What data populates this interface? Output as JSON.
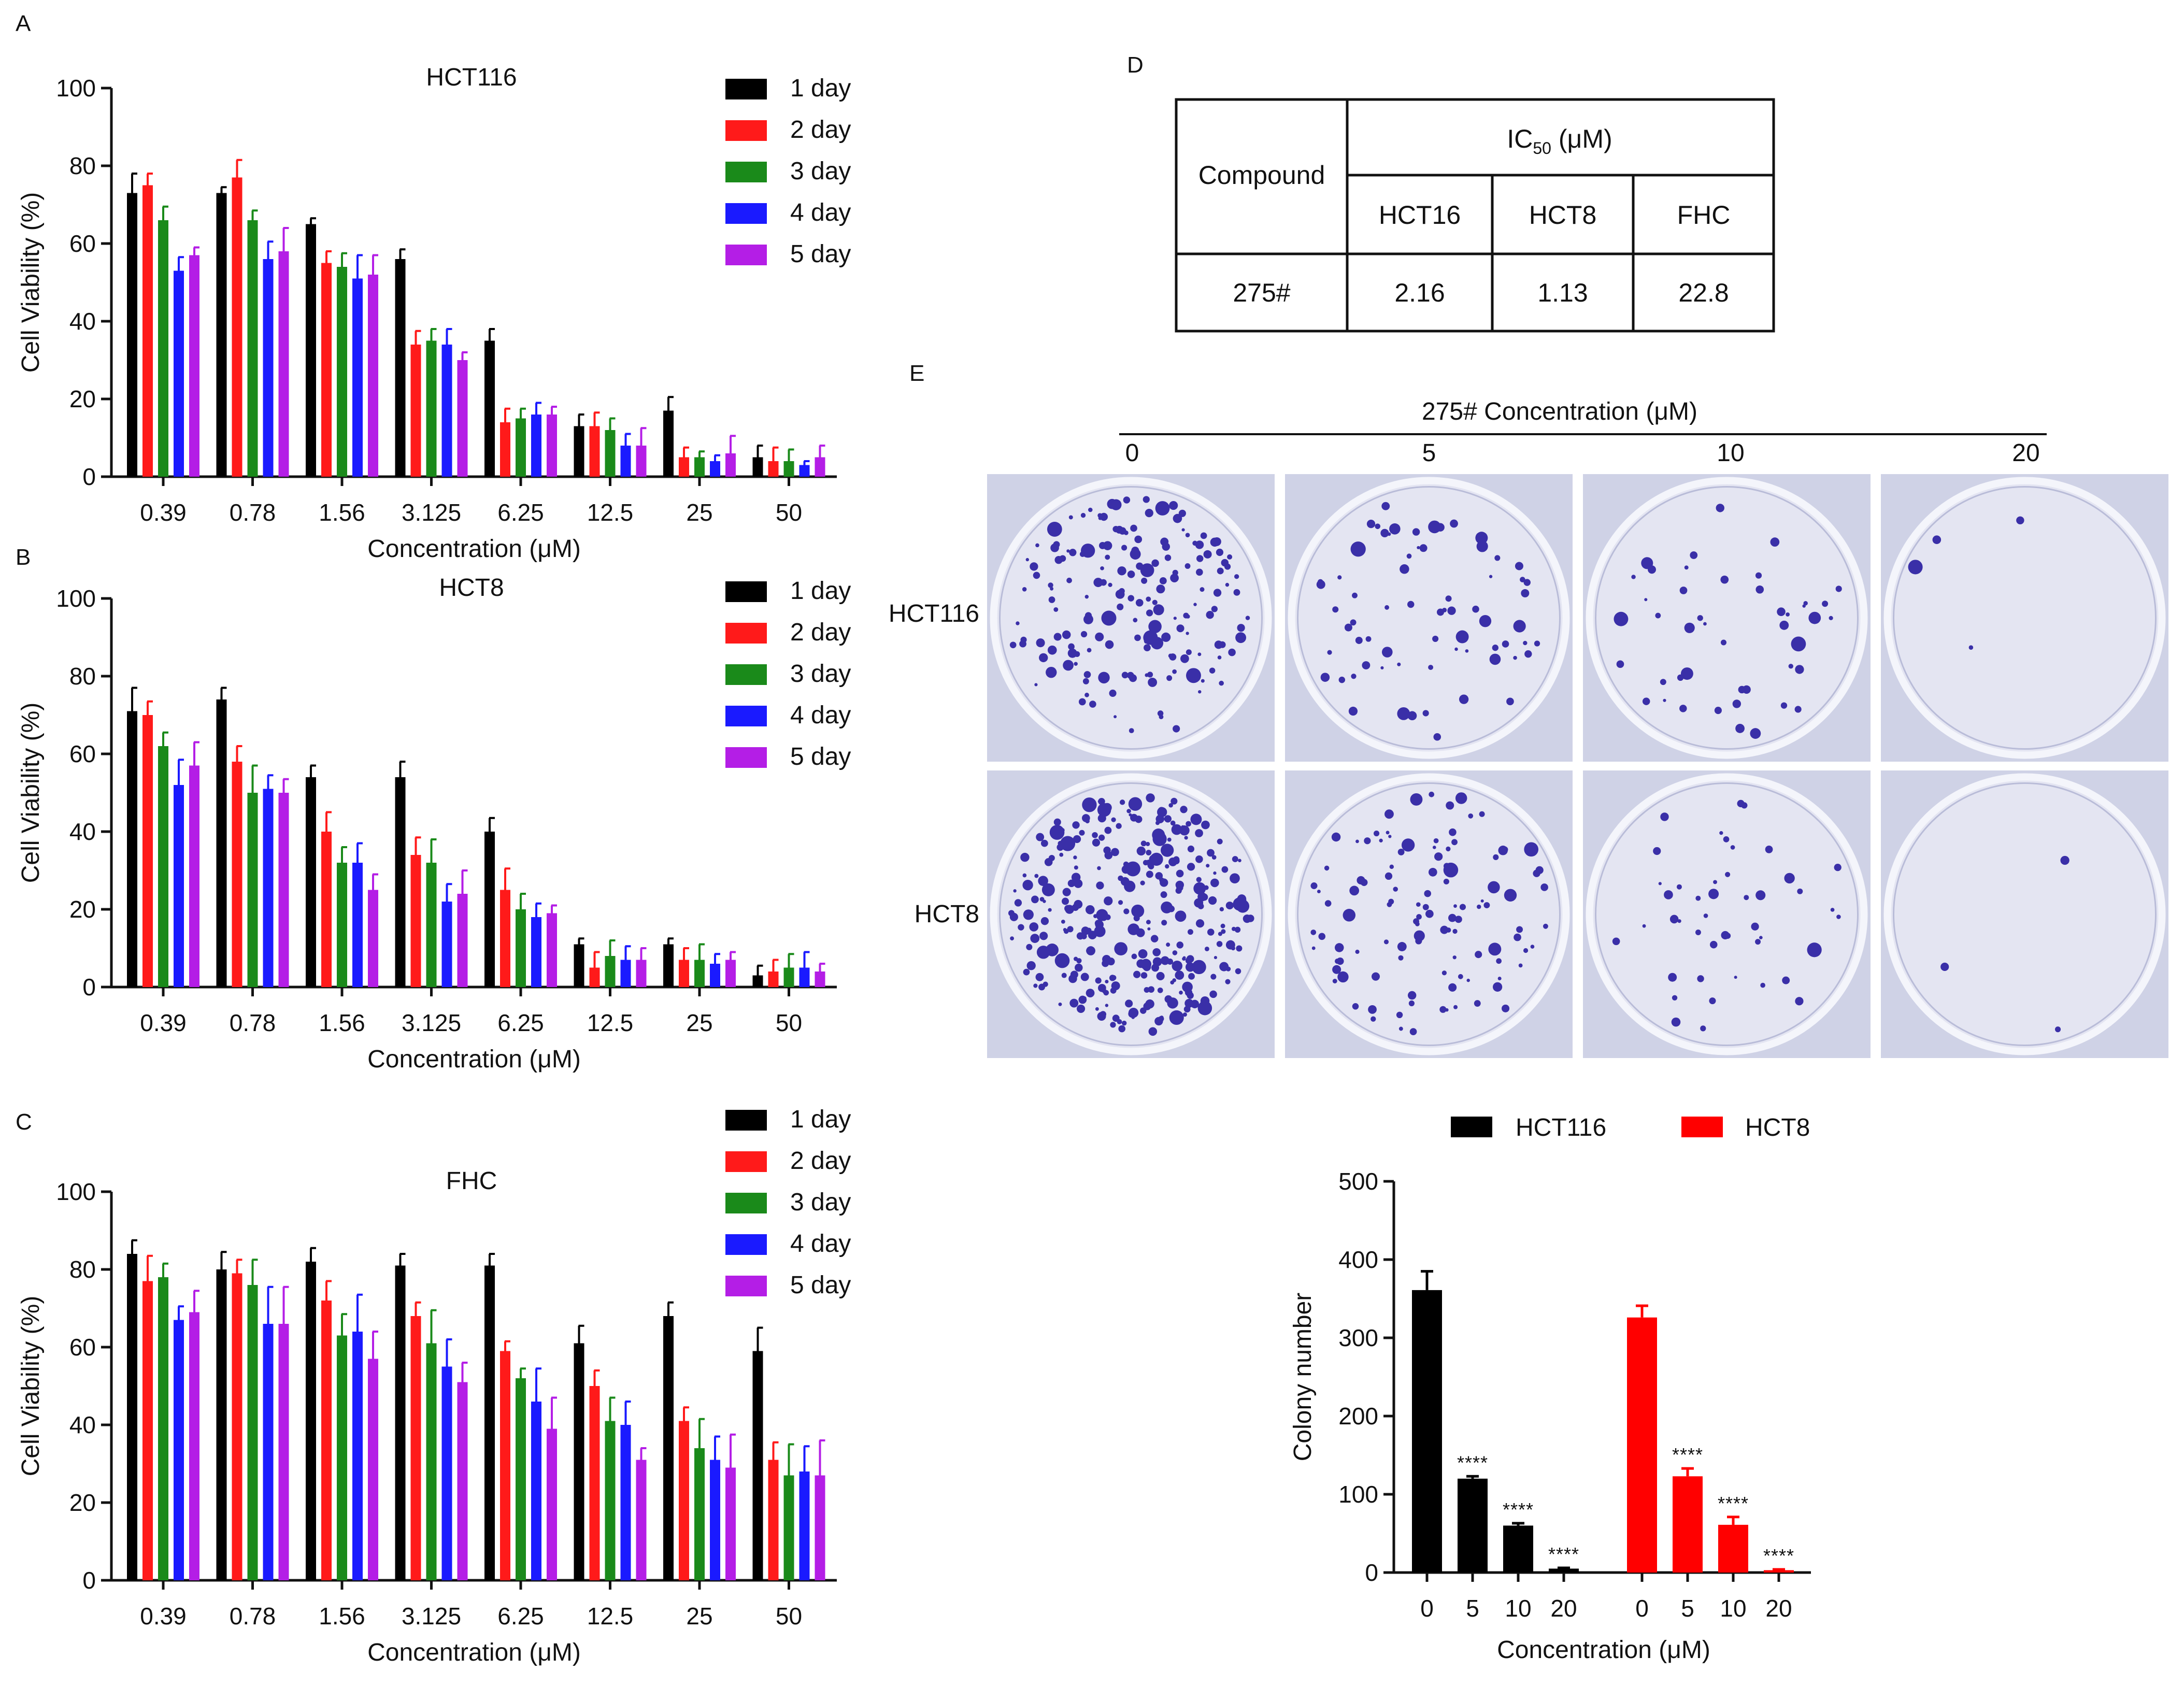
{
  "figure_letters": {
    "A": "A",
    "B": "B",
    "C": "C",
    "D": "D",
    "E": "E"
  },
  "colors": {
    "day1": "#000000",
    "day2": "#ff1a1a",
    "day3": "#1a8a1a",
    "day4": "#1a1aff",
    "day5": "#b41ee6",
    "hct116": "#000000",
    "hct8": "#ff0000",
    "dish_bg": "#e4e5f2",
    "colony": "#3a2fa8"
  },
  "chart_data": [
    {
      "id": "A",
      "type": "bar",
      "title": "HCT116",
      "xlabel": "Concentration (μM)",
      "ylabel": "Cell Viability (%)",
      "ylim": [
        0,
        100
      ],
      "yticks": [
        "0",
        "20",
        "40",
        "60",
        "80",
        "100"
      ],
      "legend_position": "top-right",
      "categories": [
        "0.39",
        "0.78",
        "1.56",
        "3.125",
        "6.25",
        "12.5",
        "25",
        "50"
      ],
      "series": [
        {
          "name": "1 day",
          "values": [
            73,
            73,
            65,
            56,
            35,
            13,
            17,
            5
          ],
          "errors": [
            5,
            1.5,
            1.5,
            2.5,
            3,
            3,
            3.5,
            3
          ]
        },
        {
          "name": "2 day",
          "values": [
            75,
            77,
            55,
            34,
            14,
            13,
            5,
            4
          ],
          "errors": [
            3,
            4.5,
            3,
            3.5,
            3.5,
            3.5,
            2.5,
            3.5
          ]
        },
        {
          "name": "3 day",
          "values": [
            66,
            66,
            54,
            35,
            15,
            12,
            5,
            4
          ],
          "errors": [
            3.5,
            2.5,
            3.5,
            3,
            2.5,
            3,
            1.5,
            3
          ]
        },
        {
          "name": "4 day",
          "values": [
            53,
            56,
            51,
            34,
            16,
            8,
            4,
            3
          ],
          "errors": [
            3.5,
            4.5,
            6,
            4,
            3,
            3,
            1.5,
            1
          ]
        },
        {
          "name": "5 day",
          "values": [
            57,
            58,
            52,
            30,
            16,
            8,
            6,
            5
          ],
          "errors": [
            2,
            6,
            5,
            2,
            2,
            4.5,
            4.5,
            3
          ]
        }
      ]
    },
    {
      "id": "B",
      "type": "bar",
      "title": "HCT8",
      "xlabel": "Concentration (μM)",
      "ylabel": "Cell Viability (%)",
      "ylim": [
        0,
        100
      ],
      "yticks": [
        "0",
        "20",
        "40",
        "60",
        "80",
        "100"
      ],
      "legend_position": "top-right",
      "categories": [
        "0.39",
        "0.78",
        "1.56",
        "3.125",
        "6.25",
        "12.5",
        "25",
        "50"
      ],
      "series": [
        {
          "name": "1 day",
          "values": [
            71,
            74,
            54,
            54,
            40,
            11,
            11,
            3
          ],
          "errors": [
            6,
            3,
            3,
            4,
            3.5,
            1.5,
            1.5,
            2.5
          ]
        },
        {
          "name": "2 day",
          "values": [
            70,
            58,
            40,
            34,
            25,
            5,
            7,
            4
          ],
          "errors": [
            3.5,
            4,
            5,
            4.5,
            5.5,
            4,
            3,
            3
          ]
        },
        {
          "name": "3 day",
          "values": [
            62,
            50,
            32,
            32,
            20,
            8,
            7,
            5
          ],
          "errors": [
            3.5,
            7,
            4,
            6,
            4,
            4,
            4,
            3.5
          ]
        },
        {
          "name": "4 day",
          "values": [
            52,
            51,
            32,
            22,
            18,
            7,
            6,
            5
          ],
          "errors": [
            6.5,
            3.5,
            5,
            4.5,
            3.5,
            3.5,
            2.5,
            4
          ]
        },
        {
          "name": "5 day",
          "values": [
            57,
            50,
            25,
            24,
            19,
            7,
            7,
            4
          ],
          "errors": [
            6,
            3.5,
            4,
            6,
            2,
            3,
            2,
            2
          ]
        }
      ]
    },
    {
      "id": "C",
      "type": "bar",
      "title": "FHC",
      "xlabel": "Concentration (μM)",
      "ylabel": "Cell Viability (%)",
      "ylim": [
        0,
        100
      ],
      "yticks": [
        "0",
        "20",
        "40",
        "60",
        "80",
        "100"
      ],
      "legend_position": "top-right",
      "categories": [
        "0.39",
        "0.78",
        "1.56",
        "3.125",
        "6.25",
        "12.5",
        "25",
        "50"
      ],
      "series": [
        {
          "name": "1 day",
          "values": [
            84,
            80,
            82,
            81,
            81,
            61,
            68,
            59
          ],
          "errors": [
            3.5,
            4.5,
            3.5,
            3,
            3,
            4.5,
            3.5,
            6
          ]
        },
        {
          "name": "2 day",
          "values": [
            77,
            79,
            72,
            68,
            59,
            50,
            41,
            31
          ],
          "errors": [
            6.5,
            3.5,
            5,
            3.5,
            2.5,
            4,
            3.5,
            4.5
          ]
        },
        {
          "name": "3 day",
          "values": [
            78,
            76,
            63,
            61,
            52,
            41,
            34,
            27
          ],
          "errors": [
            3.5,
            6.5,
            5.5,
            8.5,
            2.5,
            6,
            7.5,
            8
          ]
        },
        {
          "name": "4 day",
          "values": [
            67,
            66,
            64,
            55,
            46,
            40,
            31,
            28
          ],
          "errors": [
            3.5,
            9.5,
            9.5,
            7,
            8.5,
            6,
            6,
            6.5
          ]
        },
        {
          "name": "5 day",
          "values": [
            69,
            66,
            57,
            51,
            39,
            31,
            29,
            27
          ],
          "errors": [
            5.5,
            9.5,
            7,
            5,
            8,
            3,
            8.5,
            9
          ]
        }
      ]
    },
    {
      "id": "E-bar",
      "type": "bar",
      "title": "",
      "xlabel": "Concentration (μM)",
      "ylabel": "Colony number",
      "ylim": [
        0,
        500
      ],
      "yticks": [
        "0",
        "100",
        "200",
        "300",
        "400",
        "500"
      ],
      "legend_position": "top",
      "groups": [
        {
          "name": "HCT116",
          "categories": [
            "0",
            "5",
            "10",
            "20"
          ],
          "values": [
            361,
            120,
            60,
            5
          ],
          "errors": [
            24,
            3,
            3,
            1
          ],
          "significance": [
            "",
            "****",
            "****",
            "****"
          ]
        },
        {
          "name": "HCT8",
          "categories": [
            "0",
            "5",
            "10",
            "20"
          ],
          "values": [
            326,
            123,
            61,
            3
          ],
          "errors": [
            15,
            10,
            10,
            1
          ],
          "significance": [
            "",
            "****",
            "****",
            "****"
          ]
        }
      ]
    }
  ],
  "table_d": {
    "col_compound": "Compound",
    "ic50_prefix": "IC",
    "ic50_sub": "50",
    "ic50_suffix": " (μM)",
    "columns": [
      "HCT16",
      "HCT8",
      "FHC"
    ],
    "row_label": "275#",
    "row_values": [
      "2.16",
      "1.13",
      "22.8"
    ]
  },
  "colony_panel": {
    "header": "275# Concentration (μM)",
    "concentrations": [
      "0",
      "5",
      "10",
      "20"
    ],
    "rows": [
      "HCT116",
      "HCT8"
    ],
    "colony_counts_shown": [
      [
        180,
        70,
        45,
        4
      ],
      [
        320,
        110,
        45,
        3
      ]
    ]
  }
}
